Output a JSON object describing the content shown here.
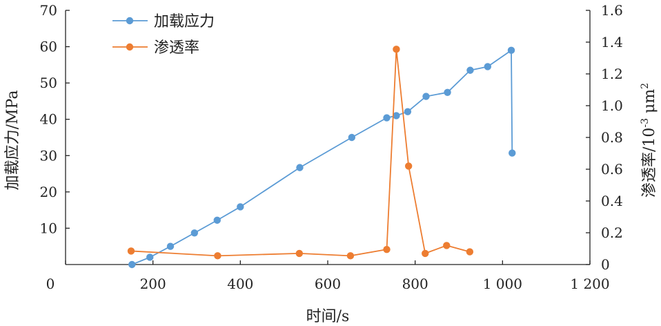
{
  "chart_data": {
    "type": "line",
    "xlabel": "时间/s",
    "ylabel_left": "加载应力/MPa",
    "ylabel_right": "渗透率/10",
    "ylabel_right_exp": "-3",
    "ylabel_right_unit": " μm",
    "ylabel_right_unit_exp": "2",
    "xlim": [
      0,
      1200
    ],
    "ylim_left": [
      0,
      70
    ],
    "ylim_right": [
      0,
      1.6
    ],
    "x_ticks": [
      0,
      200,
      400,
      600,
      800,
      1000,
      1200
    ],
    "x_tick_labels": [
      "0",
      "200",
      "400",
      "600",
      "800",
      "1 000",
      "1 200"
    ],
    "y_left_ticks": [
      10,
      20,
      30,
      40,
      50,
      60,
      70
    ],
    "y_left_tick_labels": [
      "10",
      "20",
      "30",
      "40",
      "50",
      "60",
      "70"
    ],
    "y_right_ticks": [
      0,
      0.2,
      0.4,
      0.6,
      0.8,
      1.0,
      1.2,
      1.4,
      1.6
    ],
    "y_right_tick_labels": [
      "0",
      "0.2",
      "0.4",
      "0.6",
      "0.8",
      "1.0",
      "1.2",
      "1.4",
      "1.6"
    ],
    "grid": false,
    "legend_position": "top-left",
    "series": [
      {
        "name": "加载应力",
        "axis": "left",
        "color": "#5b9bd5",
        "points": [
          [
            152,
            0
          ],
          [
            193,
            2
          ],
          [
            240,
            5
          ],
          [
            295,
            8.7
          ],
          [
            347,
            12.2
          ],
          [
            400,
            15.9
          ],
          [
            536,
            26.7
          ],
          [
            655,
            35
          ],
          [
            735,
            40.4
          ],
          [
            757,
            41
          ],
          [
            783,
            42.1
          ],
          [
            825,
            46.3
          ],
          [
            874,
            47.4
          ],
          [
            926,
            53.5
          ],
          [
            966,
            54.5
          ],
          [
            1020,
            59
          ],
          [
            1022,
            30.7
          ]
        ]
      },
      {
        "name": "渗透率",
        "axis": "right",
        "color": "#ed7d31",
        "points": [
          [
            150,
            0.085
          ],
          [
            348,
            0.055
          ],
          [
            535,
            0.07
          ],
          [
            652,
            0.055
          ],
          [
            735,
            0.095
          ],
          [
            757,
            1.355
          ],
          [
            785,
            0.62
          ],
          [
            823,
            0.07
          ],
          [
            872,
            0.12
          ],
          [
            925,
            0.08
          ]
        ]
      }
    ]
  }
}
